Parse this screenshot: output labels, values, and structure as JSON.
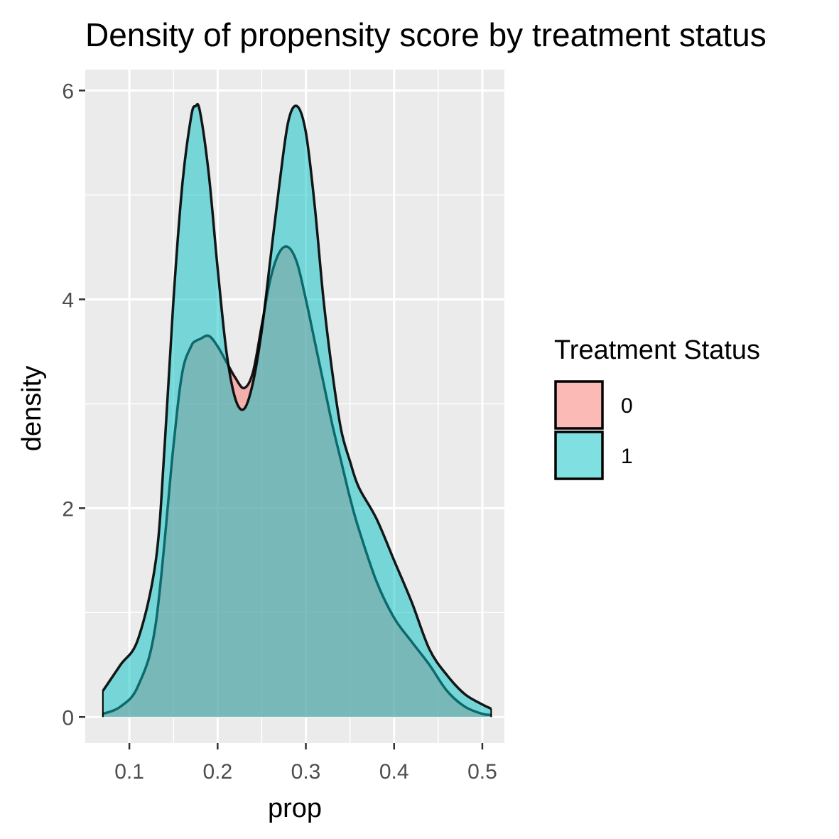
{
  "chart_data": {
    "type": "area",
    "title": "Density of propensity score by treatment status",
    "xlabel": "prop",
    "ylabel": "density",
    "xlim": [
      0.05,
      0.525
    ],
    "ylim": [
      -0.25,
      6.2
    ],
    "x_ticks": [
      0.1,
      0.2,
      0.3,
      0.4,
      0.5
    ],
    "x_tick_labels": [
      "0.1",
      "0.2",
      "0.3",
      "0.4",
      "0.5"
    ],
    "y_ticks": [
      0,
      2,
      4,
      6
    ],
    "y_tick_labels": [
      "0",
      "2",
      "4",
      "6"
    ],
    "grid": true,
    "panel_background": "#ebebeb",
    "legend": {
      "title": "Treatment Status",
      "position": "right"
    },
    "series": [
      {
        "name": "0",
        "color": "#f8766d",
        "x": [
          0.07,
          0.09,
          0.11,
          0.13,
          0.15,
          0.16,
          0.17,
          0.175,
          0.18,
          0.19,
          0.2,
          0.21,
          0.22,
          0.23,
          0.24,
          0.25,
          0.26,
          0.27,
          0.28,
          0.29,
          0.3,
          0.31,
          0.32,
          0.33,
          0.34,
          0.35,
          0.36,
          0.38,
          0.4,
          0.42,
          0.44,
          0.46,
          0.48,
          0.5,
          0.51
        ],
        "values": [
          0.03,
          0.1,
          0.3,
          0.9,
          2.6,
          3.3,
          3.55,
          3.6,
          3.62,
          3.65,
          3.55,
          3.4,
          3.25,
          3.15,
          3.3,
          3.75,
          4.2,
          4.45,
          4.5,
          4.35,
          4.0,
          3.6,
          3.2,
          2.8,
          2.45,
          2.1,
          1.8,
          1.3,
          0.95,
          0.72,
          0.5,
          0.25,
          0.1,
          0.03,
          0.02
        ]
      },
      {
        "name": "1",
        "color": "#00bfc4",
        "x": [
          0.07,
          0.09,
          0.11,
          0.13,
          0.14,
          0.15,
          0.16,
          0.17,
          0.175,
          0.18,
          0.19,
          0.2,
          0.21,
          0.22,
          0.23,
          0.24,
          0.25,
          0.26,
          0.27,
          0.28,
          0.29,
          0.3,
          0.31,
          0.32,
          0.33,
          0.34,
          0.35,
          0.36,
          0.38,
          0.4,
          0.42,
          0.44,
          0.46,
          0.48,
          0.5,
          0.51
        ],
        "values": [
          0.25,
          0.5,
          0.75,
          1.5,
          2.6,
          4.0,
          5.1,
          5.75,
          5.85,
          5.8,
          5.2,
          4.3,
          3.5,
          3.05,
          2.95,
          3.2,
          3.7,
          4.4,
          5.1,
          5.7,
          5.85,
          5.6,
          4.9,
          4.0,
          3.3,
          2.75,
          2.45,
          2.2,
          1.9,
          1.5,
          1.1,
          0.65,
          0.4,
          0.22,
          0.12,
          0.08
        ]
      }
    ]
  }
}
